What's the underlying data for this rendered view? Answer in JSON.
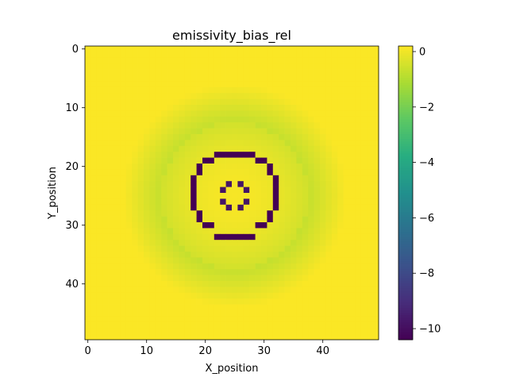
{
  "chart_data": {
    "type": "heatmap",
    "title": "emissivity_bias_rel",
    "xlabel": "X_position",
    "ylabel": "Y_position",
    "x_range": [
      0,
      49
    ],
    "y_range": [
      0,
      49
    ],
    "y_inverted": true,
    "x_ticks": [
      0,
      10,
      20,
      30,
      40
    ],
    "y_ticks": [
      0,
      10,
      20,
      30,
      40
    ],
    "grid": false,
    "colormap": "viridis",
    "color_range": [
      -10.4,
      0.2
    ],
    "colorbar_ticks": [
      0,
      -2,
      -4,
      -6,
      -8,
      -10
    ],
    "center": [
      25,
      25
    ],
    "background_value": 0.15,
    "disk": {
      "radius": 12.5,
      "edge_value": -0.5,
      "center_value": 0.1
    },
    "halo": {
      "outer_radius": 19,
      "min_value": -0.7
    },
    "ring_outer": {
      "value": -10.4,
      "cells": [
        [
          18,
          22
        ],
        [
          18,
          23
        ],
        [
          18,
          24
        ],
        [
          18,
          25
        ],
        [
          18,
          26
        ],
        [
          18,
          27
        ],
        [
          32,
          22
        ],
        [
          32,
          23
        ],
        [
          32,
          24
        ],
        [
          32,
          25
        ],
        [
          32,
          26
        ],
        [
          32,
          27
        ],
        [
          23,
          18
        ],
        [
          24,
          18
        ],
        [
          25,
          18
        ],
        [
          26,
          18
        ],
        [
          27,
          18
        ],
        [
          23,
          32
        ],
        [
          24,
          32
        ],
        [
          25,
          32
        ],
        [
          26,
          32
        ],
        [
          27,
          32
        ],
        [
          19,
          20
        ],
        [
          19,
          21
        ],
        [
          20,
          19
        ],
        [
          21,
          19
        ],
        [
          31,
          20
        ],
        [
          31,
          21
        ],
        [
          30,
          19
        ],
        [
          29,
          19
        ],
        [
          19,
          28
        ],
        [
          19,
          29
        ],
        [
          20,
          30
        ],
        [
          21,
          30
        ],
        [
          31,
          28
        ],
        [
          31,
          29
        ],
        [
          30,
          30
        ],
        [
          29,
          30
        ],
        [
          22,
          18
        ],
        [
          28,
          18
        ],
        [
          22,
          32
        ],
        [
          28,
          32
        ]
      ]
    },
    "ring_inner": {
      "value": -9.8,
      "cells": [
        [
          24,
          23
        ],
        [
          26,
          23
        ],
        [
          23,
          24
        ],
        [
          27,
          24
        ],
        [
          23,
          26
        ],
        [
          27,
          26
        ],
        [
          24,
          27
        ],
        [
          26,
          27
        ]
      ]
    }
  }
}
